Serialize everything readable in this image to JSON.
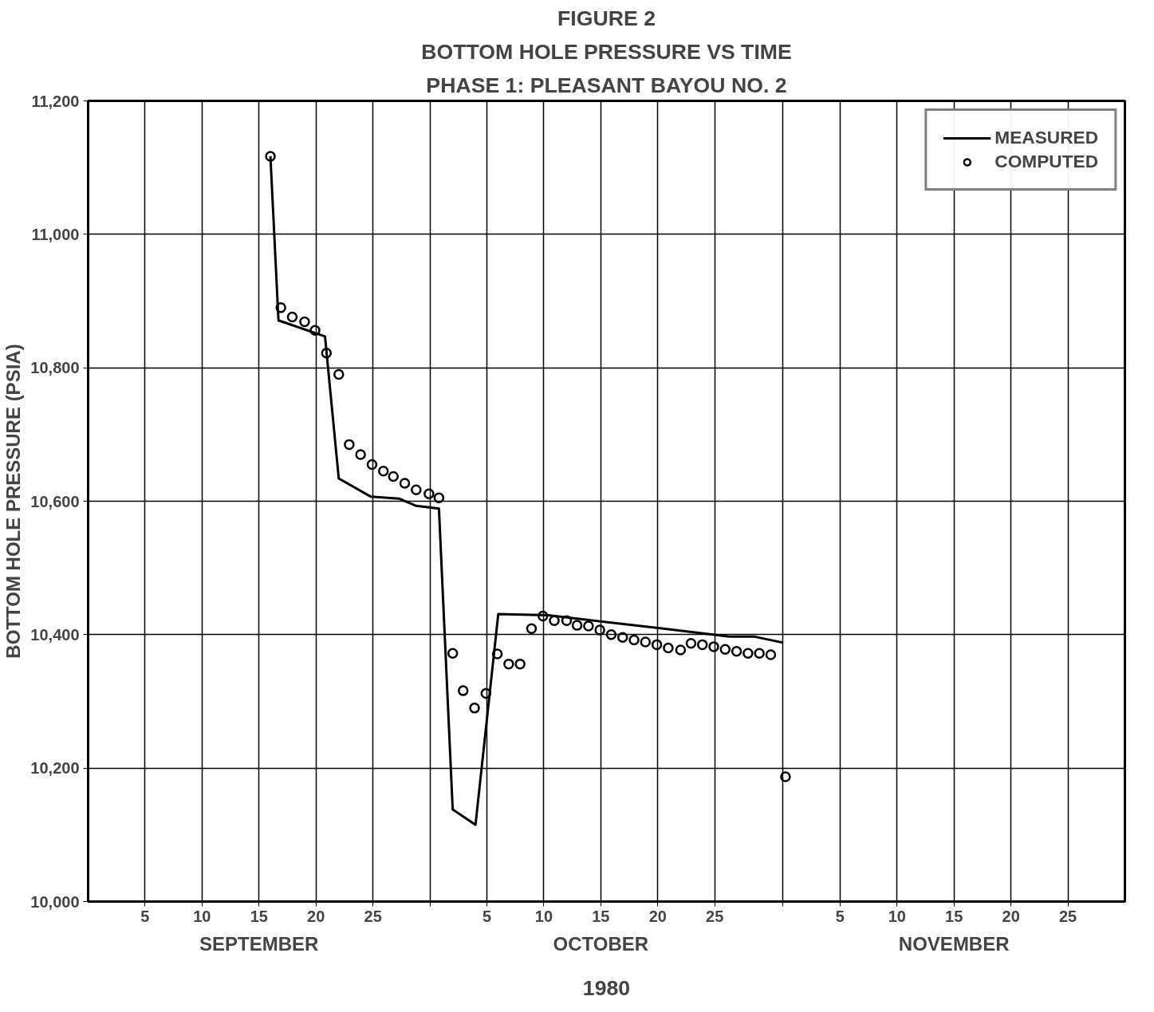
{
  "chart_data": {
    "type": "line",
    "title": "FIGURE 2",
    "subtitle": "BOTTOM HOLE PRESSURE VS TIME",
    "annotations": [
      "PHASE 1: PLEASANT BAYOU NO. 2"
    ],
    "xlabel": "1980",
    "ylabel": "BOTTOM HOLE PRESSURE (PSIA)",
    "xlim": [
      "1980-08-31",
      "1980-11-30"
    ],
    "ylim": [
      10000,
      11200
    ],
    "xticks": [
      {
        "value": "1980-09-05",
        "label": "5"
      },
      {
        "value": "1980-09-10",
        "label": "10"
      },
      {
        "value": "1980-09-15",
        "label": "15"
      },
      {
        "value": "1980-09-20",
        "label": "20"
      },
      {
        "value": "1980-09-25",
        "label": "25"
      },
      {
        "value": "1980-09-30",
        "label": null
      },
      {
        "value": "1980-10-05",
        "label": "5"
      },
      {
        "value": "1980-10-10",
        "label": "10"
      },
      {
        "value": "1980-10-15",
        "label": "15"
      },
      {
        "value": "1980-10-20",
        "label": "20"
      },
      {
        "value": "1980-10-25",
        "label": "25"
      },
      {
        "value": "1980-10-31",
        "label": null
      },
      {
        "value": "1980-11-05",
        "label": "5"
      },
      {
        "value": "1980-11-10",
        "label": "10"
      },
      {
        "value": "1980-11-15",
        "label": "15"
      },
      {
        "value": "1980-11-20",
        "label": "20"
      },
      {
        "value": "1980-11-25",
        "label": "25"
      }
    ],
    "x2lim": [
      "1980-08-31",
      "1980-11-30"
    ],
    "x2ticks": [
      {
        "value": "1980-09-15",
        "label": "SEPTEMBER"
      },
      {
        "value": "1980-10-15",
        "label": "OCTOBER"
      },
      {
        "value": "1980-11-15",
        "label": "NOVEMBER"
      }
    ],
    "yticks": [
      {
        "value": 10000,
        "label": "10,000"
      },
      {
        "value": 10200,
        "label": "10,200"
      },
      {
        "value": 10400,
        "label": "10,400"
      },
      {
        "value": 10600,
        "label": "10,600"
      },
      {
        "value": 10800,
        "label": "10,800"
      },
      {
        "value": 11000,
        "label": "11,000"
      },
      {
        "value": 11200,
        "label": "11,200"
      }
    ],
    "grid": true,
    "legend": "top right",
    "series": [
      {
        "name": "MEASURED",
        "color": "#000000",
        "line_style": "solid",
        "x": [
          "1980-09-16",
          "1980-09-16T17:00",
          "1980-09-20T19:00",
          "1980-09-22",
          "1980-09-24T19:00",
          "1980-09-27T07:00",
          "1980-09-28T19:00",
          "1980-09-30T19:00",
          "1980-10-02",
          "1980-10-04",
          "1980-10-06",
          "1980-10-10T10:00",
          "1980-10-20T12:00",
          "1980-10-26T07:00",
          "1980-10-28T12:00",
          "1980-10-31"
        ],
        "values": [
          11117,
          10871,
          10847,
          10634,
          10607,
          10604,
          10593,
          10589,
          10138,
          10115,
          10431,
          10429,
          10409,
          10397,
          10397,
          10388
        ]
      },
      {
        "name": "COMPUTED",
        "type": "scatter",
        "marker": "circle",
        "color": "#000000",
        "x": [
          "1980-09-16",
          "1980-09-16T22:00",
          "1980-09-17T22:00",
          "1980-09-19",
          "1980-09-19T22:00",
          "1980-09-20T22:00",
          "1980-09-22",
          "1980-09-22T22:00",
          "1980-09-23T22:00",
          "1980-09-24T22:00",
          "1980-09-25T22:00",
          "1980-09-26T19:00",
          "1980-09-27T19:00",
          "1980-09-28T19:00",
          "1980-09-29T22:00",
          "1980-09-30T19:00",
          "1980-10-02",
          "1980-10-02T22:00",
          "1980-10-03T22:00",
          "1980-10-04T22:00",
          "1980-10-05T22:00",
          "1980-10-06T22:00",
          "1980-10-07T22:00",
          "1980-10-08T22:00",
          "1980-10-09T22:00",
          "1980-10-10T22:00",
          "1980-10-12",
          "1980-10-12T22:00",
          "1980-10-13T22:00",
          "1980-10-14T22:00",
          "1980-10-15T22:00",
          "1980-10-16T22:00",
          "1980-10-17T22:00",
          "1980-10-18T22:00",
          "1980-10-19T22:00",
          "1980-10-20T22:00",
          "1980-10-22",
          "1980-10-22T22:00",
          "1980-10-23T22:00",
          "1980-10-24T22:00",
          "1980-10-25T22:00",
          "1980-10-26T22:00",
          "1980-10-27T22:00",
          "1980-10-28T22:00",
          "1980-10-29T22:00",
          "1980-10-31T05:00"
        ],
        "values": [
          11117,
          10890,
          10876,
          10869,
          10856,
          10822,
          10790,
          10685,
          10670,
          10655,
          10645,
          10637,
          10627,
          10617,
          10611,
          10605,
          10372,
          10316,
          10290,
          10312,
          10371,
          10356,
          10356,
          10409,
          10428,
          10421,
          10421,
          10414,
          10413,
          10407,
          10400,
          10396,
          10392,
          10389,
          10385,
          10380,
          10377,
          10387,
          10385,
          10382,
          10378,
          10375,
          10372,
          10372,
          10370,
          10187
        ]
      }
    ]
  }
}
